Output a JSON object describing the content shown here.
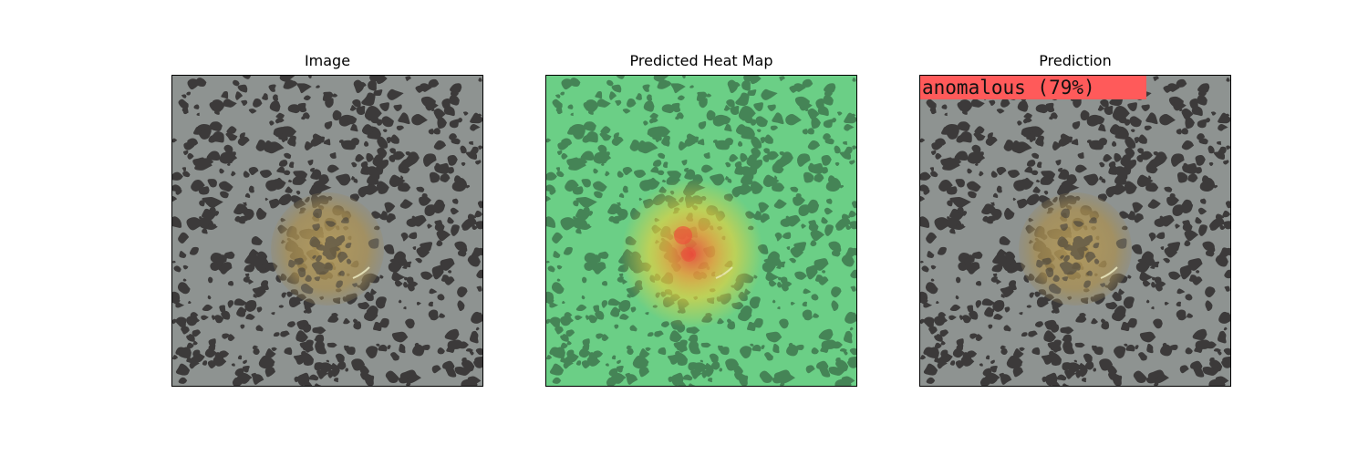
{
  "figure": {
    "panels": [
      {
        "id": "image",
        "title": "Image"
      },
      {
        "id": "heatmap",
        "title": "Predicted Heat Map"
      },
      {
        "id": "prediction",
        "title": "Prediction"
      }
    ],
    "prediction_label": "anomalous (79%)",
    "colors": {
      "stone_base": "#8e9391",
      "stone_speckle": "#3c3a3a",
      "defect": "#b59a58",
      "heat_low": "#5fd07a",
      "heat_mid": "#f2d23a",
      "heat_high": "#f04a3a",
      "label_bg": "#ff5a5a"
    }
  }
}
